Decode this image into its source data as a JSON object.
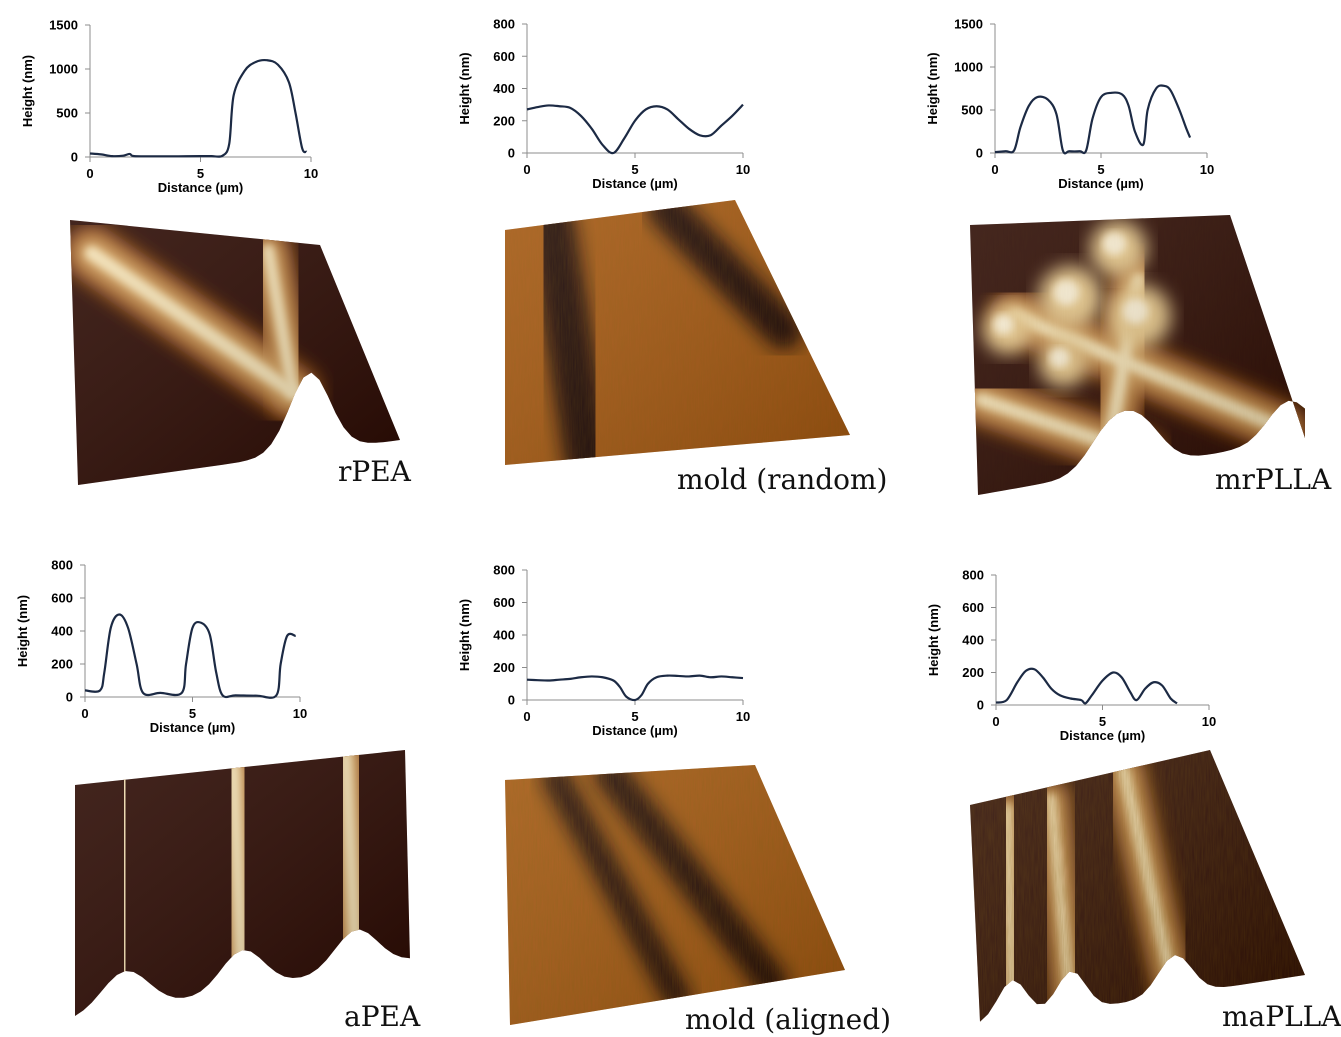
{
  "panels": [
    {
      "id": "rpea",
      "label": "rPEA",
      "chart_data": {
        "type": "line",
        "xlabel": "Distance (µm)",
        "ylabel": "Height (nm)",
        "xlim": [
          0,
          10
        ],
        "ylim": [
          0,
          1500
        ],
        "xticks": [
          0,
          5,
          10
        ],
        "yticks": [
          0,
          500,
          1000,
          1500
        ],
        "series": [
          {
            "x": [
              0,
              0.5,
              1,
              1.5,
              1.8,
              2,
              3,
              4,
              5,
              5.5,
              6,
              6.3,
              6.5,
              7,
              7.5,
              8,
              8.5,
              9,
              9.3,
              9.6,
              9.8
            ],
            "y": [
              40,
              30,
              10,
              15,
              35,
              10,
              8,
              8,
              10,
              10,
              15,
              150,
              700,
              980,
              1080,
              1100,
              1050,
              850,
              500,
              100,
              60
            ]
          }
        ]
      },
      "afm": {
        "ridges": [
          {
            "from": [
              0.08,
              0.12
            ],
            "to": [
              0.72,
              0.72
            ],
            "w": 0.11
          },
          {
            "from": [
              0.78,
              0.05
            ],
            "to": [
              0.72,
              0.72
            ],
            "w": 0.09
          }
        ],
        "noise": 0.0
      }
    },
    {
      "id": "mold-random",
      "label": "mold (random)",
      "chart_data": {
        "type": "line",
        "xlabel": "Distance (µm)",
        "ylabel": "Height (nm)",
        "xlim": [
          0,
          10
        ],
        "ylim": [
          0,
          800
        ],
        "xticks": [
          0,
          5,
          10
        ],
        "yticks": [
          0,
          200,
          400,
          600,
          800
        ],
        "series": [
          {
            "x": [
              0,
              0.5,
              1,
              1.5,
              2,
              2.5,
              3,
              3.5,
              4,
              4.5,
              5,
              5.5,
              6,
              6.5,
              7,
              7.5,
              8,
              8.5,
              9,
              9.5,
              10
            ],
            "y": [
              270,
              285,
              295,
              290,
              280,
              230,
              150,
              50,
              0,
              90,
              200,
              270,
              290,
              270,
              210,
              150,
              110,
              110,
              170,
              230,
              300
            ]
          }
        ]
      },
      "afm": {
        "ridges": [],
        "trenches": [
          {
            "from": [
              0.2,
              0.0
            ],
            "to": [
              0.24,
              1.0
            ],
            "w": 0.1
          },
          {
            "from": [
              0.7,
              0.0
            ],
            "to": [
              0.95,
              0.55
            ],
            "w": 0.08
          }
        ],
        "noise": 0.25
      }
    },
    {
      "id": "mrplla",
      "label": "mrPLLA",
      "chart_data": {
        "type": "line",
        "xlabel": "Distance (µm)",
        "ylabel": "Height (nm)",
        "xlim": [
          0,
          10
        ],
        "ylim": [
          0,
          1500
        ],
        "xticks": [
          0,
          5,
          10
        ],
        "yticks": [
          0,
          500,
          1000,
          1500
        ],
        "series": [
          {
            "x": [
              0,
              0.5,
              0.9,
              1.2,
              1.6,
              2,
              2.5,
              2.9,
              3.2,
              3.5,
              4,
              4.3,
              4.6,
              5,
              5.5,
              6,
              6.3,
              6.6,
              7,
              7.2,
              7.6,
              8,
              8.3,
              8.7,
              9,
              9.2
            ],
            "y": [
              10,
              20,
              30,
              300,
              550,
              650,
              620,
              450,
              30,
              20,
              20,
              30,
              400,
              650,
              700,
              680,
              550,
              250,
              100,
              500,
              750,
              780,
              720,
              500,
              300,
              180
            ]
          }
        ]
      },
      "afm": {
        "ridges": [
          {
            "from": [
              0.02,
              0.65
            ],
            "to": [
              0.5,
              0.95
            ],
            "w": 0.1
          },
          {
            "from": [
              0.15,
              0.35
            ],
            "to": [
              0.95,
              0.95
            ],
            "w": 0.1
          },
          {
            "from": [
              0.6,
              0.25
            ],
            "to": [
              0.4,
              0.95
            ],
            "w": 0.1
          }
        ],
        "bumps": [
          [
            0.35,
            0.3,
            0.09
          ],
          [
            0.55,
            0.12,
            0.08
          ],
          [
            0.58,
            0.4,
            0.09
          ],
          [
            0.12,
            0.4,
            0.07
          ],
          [
            0.3,
            0.55,
            0.07
          ]
        ],
        "noise": 0.05
      }
    },
    {
      "id": "apea",
      "label": "aPEA",
      "chart_data": {
        "type": "line",
        "xlabel": "Distance (µm)",
        "ylabel": "Height (nm)",
        "xlim": [
          0,
          10
        ],
        "ylim": [
          0,
          800
        ],
        "xticks": [
          0,
          5,
          10
        ],
        "yticks": [
          0,
          200,
          400,
          600,
          800
        ],
        "series": [
          {
            "x": [
              0,
              0.7,
              0.9,
              1.2,
              1.6,
              2,
              2.4,
              2.7,
              3.5,
              4.5,
              4.7,
              5,
              5.4,
              5.8,
              6.1,
              6.4,
              7,
              8,
              8.9,
              9.1,
              9.4,
              9.8
            ],
            "y": [
              40,
              40,
              150,
              420,
              500,
              420,
              200,
              25,
              25,
              25,
              200,
              420,
              450,
              380,
              150,
              10,
              10,
              8,
              10,
              200,
              370,
              370
            ]
          }
        ]
      },
      "afm": {
        "ridges": [
          {
            "from": [
              0.15,
              0.0
            ],
            "to": [
              0.15,
              1.0
            ],
            "w": 0.11
          },
          {
            "from": [
              0.48,
              0.0
            ],
            "to": [
              0.5,
              1.0
            ],
            "w": 0.1
          },
          {
            "from": [
              0.82,
              0.0
            ],
            "to": [
              0.84,
              1.0
            ],
            "w": 0.1
          }
        ],
        "noise": 0.0
      }
    },
    {
      "id": "mold-aligned",
      "label": "mold (aligned)",
      "chart_data": {
        "type": "line",
        "xlabel": "Distance (µm)",
        "ylabel": "Height (nm)",
        "xlim": [
          0,
          10
        ],
        "ylim": [
          0,
          800
        ],
        "xticks": [
          0,
          5,
          10
        ],
        "yticks": [
          0,
          200,
          400,
          600,
          800
        ],
        "series": [
          {
            "x": [
              0,
              0.5,
              1,
              1.5,
              2,
              2.5,
              3,
              3.5,
              4,
              4.3,
              4.6,
              5,
              5.3,
              5.6,
              6,
              6.5,
              7,
              7.5,
              8,
              8.5,
              9,
              9.5,
              10
            ],
            "y": [
              125,
              122,
              120,
              125,
              130,
              140,
              145,
              140,
              120,
              80,
              20,
              0,
              30,
              100,
              140,
              150,
              148,
              145,
              150,
              140,
              145,
              140,
              135
            ]
          }
        ]
      },
      "afm": {
        "ridges": [],
        "trenches": [
          {
            "from": [
              0.2,
              0.0
            ],
            "to": [
              0.5,
              1.0
            ],
            "w": 0.06
          },
          {
            "from": [
              0.42,
              0.0
            ],
            "to": [
              0.78,
              1.0
            ],
            "w": 0.07
          }
        ],
        "noise": 0.35
      }
    },
    {
      "id": "maplla",
      "label": "maPLLA",
      "chart_data": {
        "type": "line",
        "xlabel": "Distance (µm)",
        "ylabel": "Height (nm)",
        "xlim": [
          0,
          10
        ],
        "ylim": [
          0,
          800
        ],
        "xticks": [
          0,
          5,
          10
        ],
        "yticks": [
          0,
          200,
          400,
          600,
          800
        ],
        "series": [
          {
            "x": [
              0,
              0.5,
              1,
              1.4,
              1.8,
              2.2,
              2.6,
              3,
              3.5,
              4,
              4.2,
              4.5,
              5,
              5.5,
              5.9,
              6.3,
              6.6,
              7,
              7.4,
              7.8,
              8.2,
              8.5
            ],
            "y": [
              15,
              30,
              140,
              210,
              220,
              170,
              100,
              60,
              40,
              30,
              10,
              60,
              150,
              200,
              170,
              80,
              30,
              100,
              140,
              120,
              40,
              10
            ]
          }
        ]
      },
      "afm": {
        "ridges": [
          {
            "from": [
              0.15,
              0.05
            ],
            "to": [
              0.1,
              1.0
            ],
            "w": 0.07
          },
          {
            "from": [
              0.33,
              0.05
            ],
            "to": [
              0.28,
              1.0
            ],
            "w": 0.07
          },
          {
            "from": [
              0.64,
              0.0
            ],
            "to": [
              0.6,
              1.0
            ],
            "w": 0.08
          }
        ],
        "noise": 0.3
      }
    }
  ],
  "colors": {
    "line": "#1c2a44",
    "afm_dark": "#2a0800",
    "afm_mid": "#8a4210",
    "afm_light": "#f4e2b6"
  }
}
